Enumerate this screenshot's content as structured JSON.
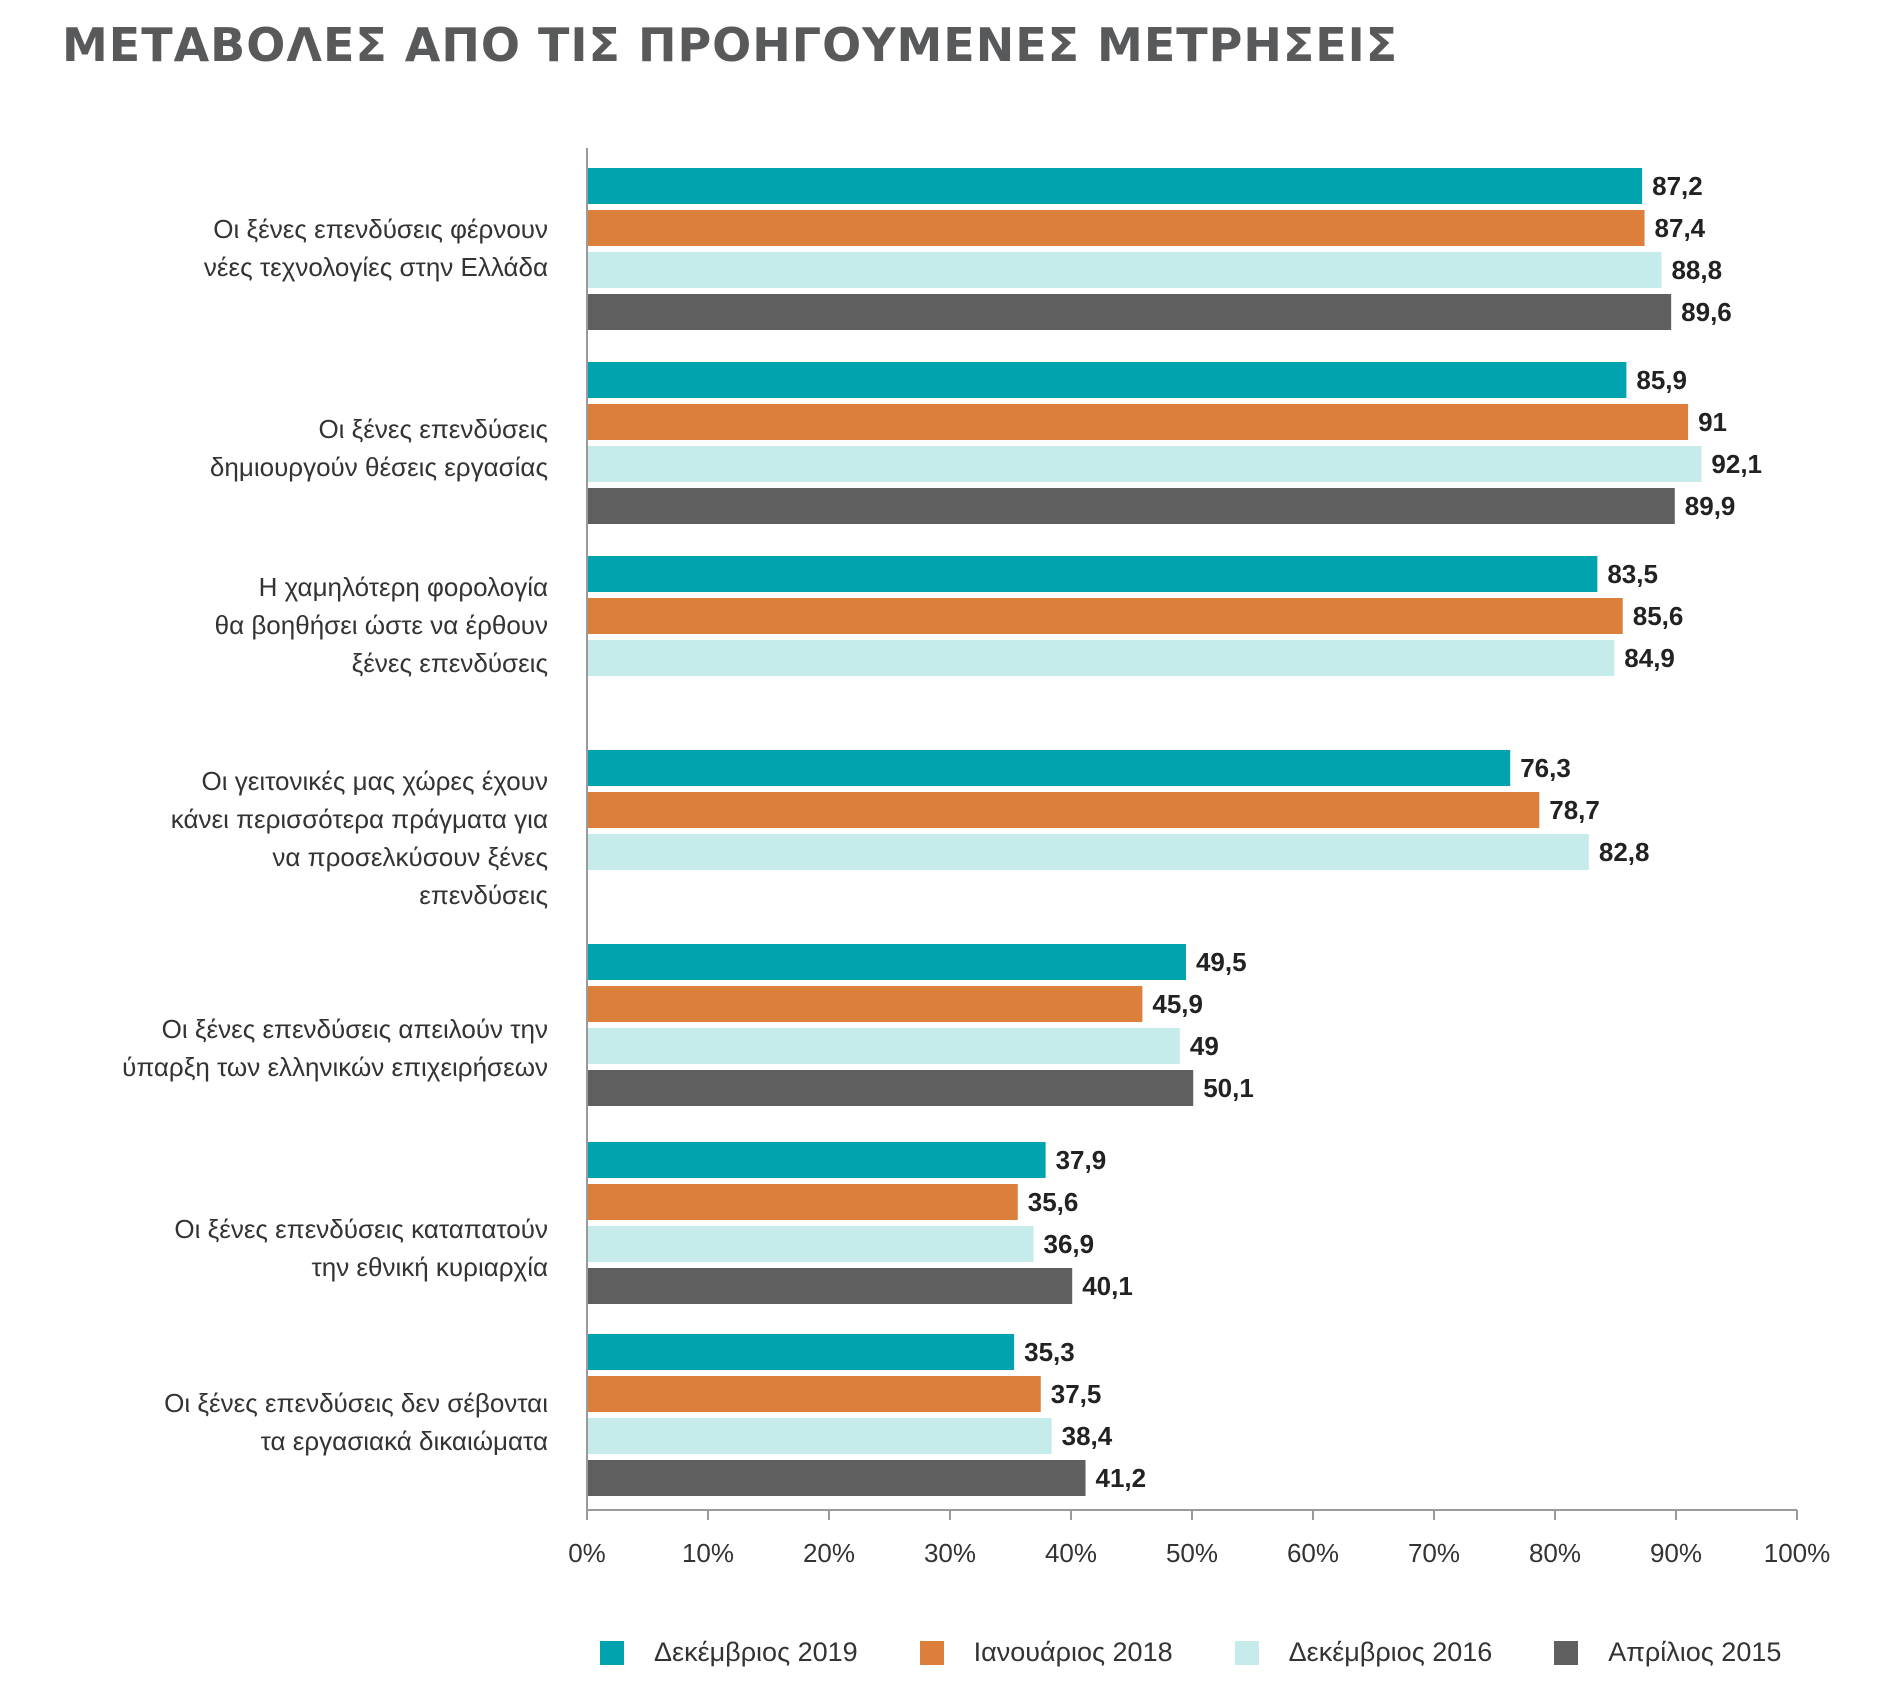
{
  "chart_data": {
    "type": "bar",
    "orientation": "horizontal",
    "title": "ΜΕΤΑΒΟΛΕΣ ΑΠΟ ΤΙΣ ΠΡΟΗΓΟΥΜΕΝΕΣ ΜΕΤΡΗΣΕΙΣ",
    "xlim": [
      0,
      100
    ],
    "x_ticks": [
      "0%",
      "10%",
      "20%",
      "30%",
      "40%",
      "50%",
      "60%",
      "70%",
      "80%",
      "90%",
      "100%"
    ],
    "grid": false,
    "legend_position": "bottom",
    "categories": [
      "Οι ξένες επενδύσεις φέρνουν\nνέες τεχνολογίες στην Ελλάδα",
      "Οι ξένες επενδύσεις\nδημιουργούν θέσεις εργασίας",
      "Η χαμηλότερη φορολογία\nθα  βοηθήσει ώστε να έρθουν\nξένες επενδύσεις",
      "Οι γειτονικές μας χώρες έχουν\nκάνει περισσότερα πράγματα για\nνα προσελκύσουν ξένες\nεπενδύσεις",
      "Οι ξένες επενδύσεις απειλούν την\nύπαρξη των ελληνικών επιχειρήσεων",
      "Οι ξένες επενδύσεις καταπατούν\nτην εθνική κυριαρχία",
      "Οι ξένες επενδύσεις  δεν σέβονται\nτα εργασιακά δικαιώματα"
    ],
    "series": [
      {
        "name": "Δεκέμβριος 2019",
        "color": "#00a3ae",
        "values": [
          87.2,
          85.9,
          83.5,
          76.3,
          49.5,
          37.9,
          35.3
        ],
        "labels": [
          "87,2",
          "85,9",
          "83,5",
          "76,3",
          "49,5",
          "37,9",
          "35,3"
        ]
      },
      {
        "name": "Ιανουάριος 2018",
        "color": "#db7f3b",
        "values": [
          87.4,
          91,
          85.6,
          78.7,
          45.9,
          35.6,
          37.5
        ],
        "labels": [
          "87,4",
          "91",
          "85,6",
          "78,7",
          "45,9",
          "35,6",
          "37,5"
        ]
      },
      {
        "name": "Δεκέμβριος 2016",
        "color": "#c5eceb",
        "values": [
          88.8,
          92.1,
          84.9,
          82.8,
          49,
          36.9,
          38.4
        ],
        "labels": [
          "88,8",
          "92,1",
          "84,9",
          "82,8",
          "49",
          "36,9",
          "38,4"
        ]
      },
      {
        "name": "Απρίλιος 2015",
        "color": "#5f5f5f",
        "values": [
          89.6,
          89.9,
          null,
          null,
          50.1,
          40.1,
          41.2
        ],
        "labels": [
          "89,6",
          "89,9",
          null,
          null,
          "50,1",
          "40,1",
          "41,2"
        ]
      }
    ]
  }
}
